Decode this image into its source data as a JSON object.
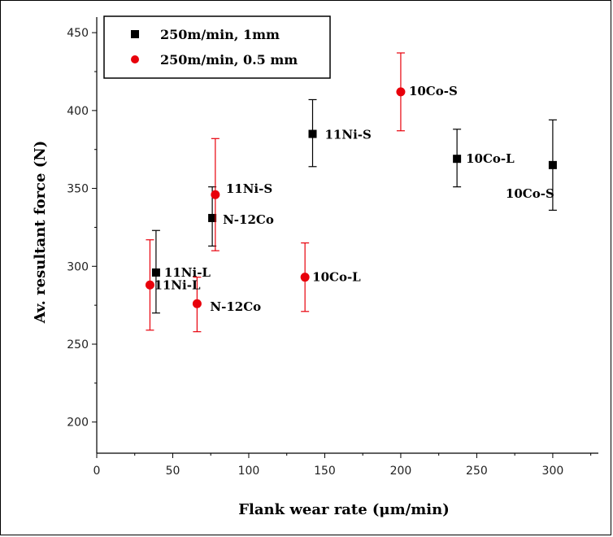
{
  "chart_data": {
    "type": "scatter",
    "title": "",
    "xlabel": "Flank wear rate (μm/min)",
    "ylabel": "Av. resultant force (N)",
    "xlim": [
      0,
      330
    ],
    "ylim": [
      180,
      460
    ],
    "xticks": [
      0,
      50,
      100,
      150,
      200,
      250,
      300
    ],
    "yticks": [
      200,
      250,
      300,
      350,
      400,
      450
    ],
    "legend_position": "top-left",
    "series": [
      {
        "name": "250m/min, 1mm",
        "marker": "square",
        "color": "#000000",
        "points": [
          {
            "x": 39,
            "y": 296,
            "err_low": 270,
            "err_high": 323,
            "label": "11Ni-L"
          },
          {
            "x": 76,
            "y": 331,
            "err_low": 313,
            "err_high": 351,
            "label": "N-12Co"
          },
          {
            "x": 142,
            "y": 385,
            "err_low": 364,
            "err_high": 407,
            "label": "11Ni-S"
          },
          {
            "x": 237,
            "y": 369,
            "err_low": 351,
            "err_high": 388,
            "label": "10Co-L"
          },
          {
            "x": 300,
            "y": 365,
            "err_low": 336,
            "err_high": 394,
            "label": "10Co-S"
          }
        ]
      },
      {
        "name": "250m/min, 0.5 mm",
        "marker": "circle",
        "color": "#e8000b",
        "points": [
          {
            "x": 35,
            "y": 288,
            "err_low": 259,
            "err_high": 317,
            "label": "11Ni-L"
          },
          {
            "x": 66,
            "y": 276,
            "err_low": 258,
            "err_high": 293,
            "label": "N-12Co"
          },
          {
            "x": 78,
            "y": 346,
            "err_low": 310,
            "err_high": 382,
            "label": "11Ni-S"
          },
          {
            "x": 137,
            "y": 293,
            "err_low": 271,
            "err_high": 315,
            "label": "10Co-L"
          },
          {
            "x": 200,
            "y": 412,
            "err_low": 387,
            "err_high": 437,
            "label": "10Co-S"
          }
        ]
      }
    ]
  }
}
